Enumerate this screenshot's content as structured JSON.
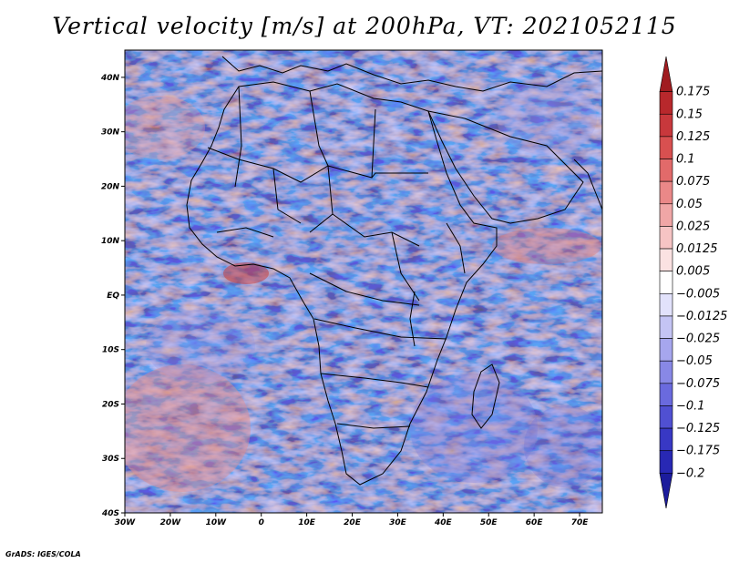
{
  "title": "Vertical velocity [m/s] at 200hPa, VT: 2021052115",
  "footer": "GrADS: IGES/COLA",
  "map": {
    "lon_range": [
      -30,
      75
    ],
    "lat_range": [
      -40,
      45
    ],
    "lat_ticks": [
      {
        "value": 40,
        "label": "40N"
      },
      {
        "value": 30,
        "label": "30N"
      },
      {
        "value": 20,
        "label": "20N"
      },
      {
        "value": 10,
        "label": "10N"
      },
      {
        "value": 0,
        "label": "EQ"
      },
      {
        "value": -10,
        "label": "10S"
      },
      {
        "value": -20,
        "label": "20S"
      },
      {
        "value": -30,
        "label": "30S"
      },
      {
        "value": -40,
        "label": "40S"
      }
    ],
    "lon_ticks": [
      {
        "value": -30,
        "label": "30W"
      },
      {
        "value": -20,
        "label": "20W"
      },
      {
        "value": -10,
        "label": "10W"
      },
      {
        "value": 0,
        "label": "0"
      },
      {
        "value": 10,
        "label": "10E"
      },
      {
        "value": 20,
        "label": "20E"
      },
      {
        "value": 30,
        "label": "30E"
      },
      {
        "value": 40,
        "label": "40E"
      },
      {
        "value": 50,
        "label": "50E"
      },
      {
        "value": 60,
        "label": "60E"
      },
      {
        "value": 70,
        "label": "70E"
      }
    ]
  },
  "colorbar": {
    "levels": [
      "0.175",
      "0.15",
      "0.125",
      "0.1",
      "0.075",
      "0.05",
      "0.025",
      "0.0125",
      "0.005",
      "−0.005",
      "−0.0125",
      "−0.025",
      "−0.05",
      "−0.075",
      "−0.1",
      "−0.125",
      "−0.175",
      "−0.2"
    ],
    "colors": [
      "#a01c20",
      "#b8282c",
      "#c8383c",
      "#d85050",
      "#e26a6a",
      "#ea8888",
      "#f0a6a6",
      "#f6c4c4",
      "#fbe2e2",
      "#ffffff",
      "#e2e2fb",
      "#c4c4f4",
      "#a6a6ee",
      "#8888e6",
      "#6a6ade",
      "#5050d2",
      "#3838c4",
      "#2828b4",
      "#1c1c9c"
    ]
  }
}
